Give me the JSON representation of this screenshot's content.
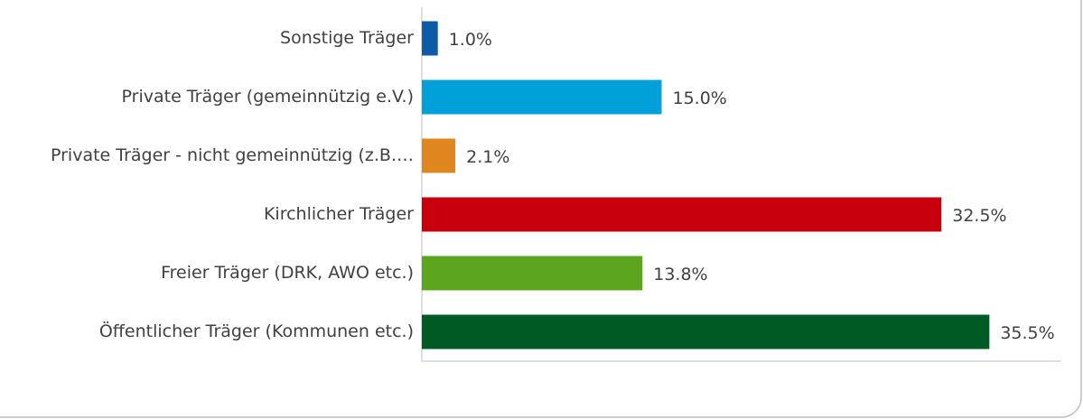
{
  "chart_data": {
    "type": "hbar",
    "categories": [
      "Sonstige Träger",
      "Private Träger (gemeinnützig e.V.)",
      "Private Träger - nicht gemeinnützig (z.B.…",
      "Kirchlicher Träger",
      "Freier Träger (DRK, AWO etc.)",
      "Öffentlicher Träger (Kommunen etc.)"
    ],
    "values": [
      1.0,
      15.0,
      2.1,
      32.5,
      13.8,
      35.5
    ],
    "value_labels": [
      "1.0%",
      "15.0%",
      "2.1%",
      "32.5%",
      "13.8%",
      "35.5%"
    ],
    "colors": [
      "#0b5ba6",
      "#00a0d8",
      "#e0861f",
      "#c8000e",
      "#5ba51f",
      "#005a24"
    ],
    "xlim": [
      0,
      40
    ]
  }
}
